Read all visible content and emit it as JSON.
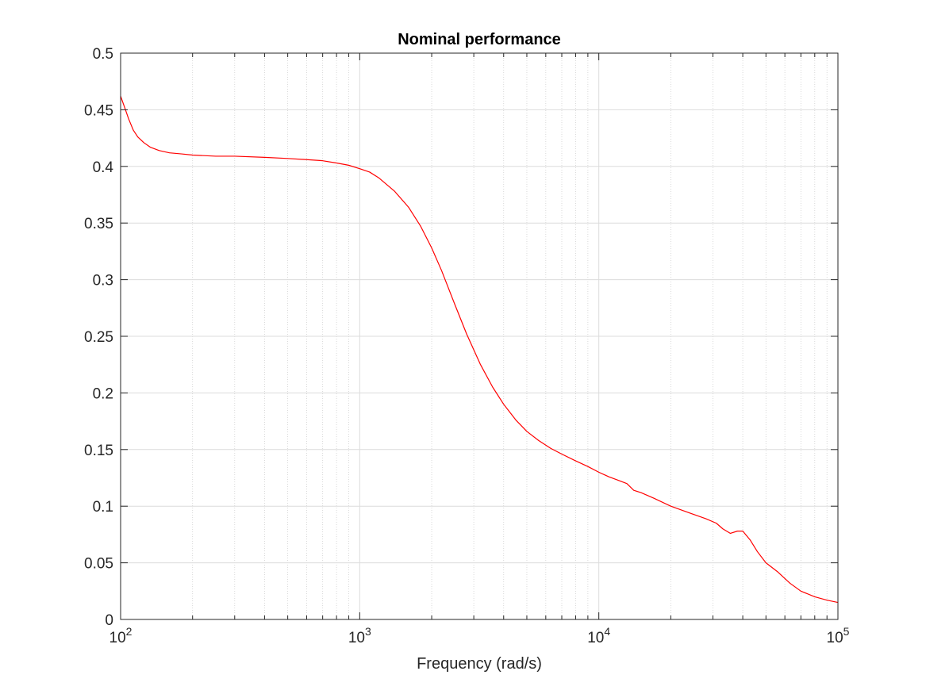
{
  "chart_data": {
    "type": "line",
    "title": "Nominal performance",
    "xlabel": "Frequency (rad/s)",
    "ylabel": "",
    "xscale": "log",
    "xlim": [
      100,
      100000
    ],
    "ylim": [
      0,
      0.5
    ],
    "grid": true,
    "minor_grid_x": true,
    "legend": "none",
    "line_color": "#ff0000",
    "x_ticks": [
      {
        "value": 100,
        "base": "10",
        "exp": "2"
      },
      {
        "value": 1000,
        "base": "10",
        "exp": "3"
      },
      {
        "value": 10000,
        "base": "10",
        "exp": "4"
      },
      {
        "value": 100000,
        "base": "10",
        "exp": "5"
      }
    ],
    "y_ticks": [
      {
        "value": 0,
        "label": "0"
      },
      {
        "value": 0.05,
        "label": "0.05"
      },
      {
        "value": 0.1,
        "label": "0.1"
      },
      {
        "value": 0.15,
        "label": "0.15"
      },
      {
        "value": 0.2,
        "label": "0.2"
      },
      {
        "value": 0.25,
        "label": "0.25"
      },
      {
        "value": 0.3,
        "label": "0.3"
      },
      {
        "value": 0.35,
        "label": "0.35"
      },
      {
        "value": 0.4,
        "label": "0.4"
      },
      {
        "value": 0.45,
        "label": "0.45"
      },
      {
        "value": 0.5,
        "label": "0.5"
      }
    ],
    "series": [
      {
        "x": [
          100,
          104,
          108,
          113,
          118,
          125,
          133,
          145,
          160,
          180,
          200,
          250,
          300,
          400,
          500,
          600,
          700,
          800,
          900,
          1000,
          1100,
          1200,
          1400,
          1600,
          1800,
          2000,
          2200,
          2500,
          2800,
          3200,
          3600,
          4000,
          4500,
          5000,
          5600,
          6300,
          7000,
          8000,
          9000,
          10000,
          11000,
          12000,
          13100,
          14000,
          15000,
          17000,
          20000,
          24000,
          28000,
          31000,
          33000,
          35500,
          38000,
          40000,
          43000,
          46000,
          50000,
          56000,
          63000,
          70000,
          80000,
          90000,
          100000
        ],
        "y": [
          0.462,
          0.452,
          0.442,
          0.432,
          0.426,
          0.421,
          0.417,
          0.414,
          0.412,
          0.411,
          0.41,
          0.409,
          0.409,
          0.408,
          0.407,
          0.406,
          0.405,
          0.403,
          0.401,
          0.398,
          0.395,
          0.39,
          0.378,
          0.364,
          0.347,
          0.328,
          0.308,
          0.278,
          0.252,
          0.225,
          0.205,
          0.19,
          0.176,
          0.166,
          0.158,
          0.151,
          0.146,
          0.14,
          0.135,
          0.13,
          0.126,
          0.123,
          0.12,
          0.114,
          0.112,
          0.107,
          0.1,
          0.094,
          0.089,
          0.085,
          0.08,
          0.076,
          0.078,
          0.078,
          0.07,
          0.06,
          0.05,
          0.042,
          0.032,
          0.025,
          0.02,
          0.017,
          0.015
        ]
      }
    ]
  }
}
